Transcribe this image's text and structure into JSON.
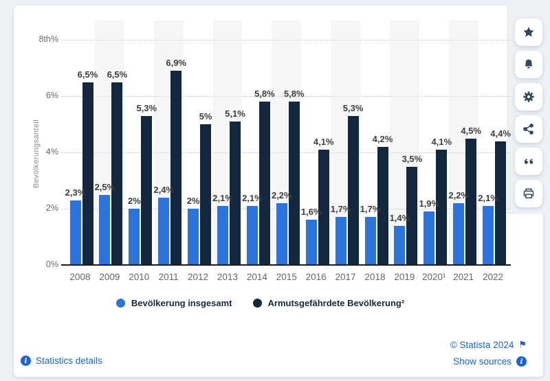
{
  "chart_data": {
    "type": "bar",
    "grouped": true,
    "title": "",
    "xlabel": "",
    "ylabel": "Bevölkerungsanteil",
    "ylim": [
      0,
      8
    ],
    "grid": "horizontal-dotted",
    "legend_position": "bottom",
    "categories": [
      "2008",
      "2009",
      "2010",
      "2011",
      "2012",
      "2013",
      "2014",
      "2015",
      "2016",
      "2017",
      "2018",
      "2019",
      "2020¹",
      "2021",
      "2022"
    ],
    "series": [
      {
        "name": "Bevölkerung insgesamt",
        "color": "#2b74dd",
        "values": [
          2.3,
          2.5,
          2.0,
          2.4,
          2.0,
          2.1,
          2.1,
          2.2,
          1.6,
          1.7,
          1.7,
          1.4,
          1.9,
          2.2,
          2.1
        ],
        "labels": [
          "2,3%",
          "2,5%",
          "2%",
          "2,4%",
          "2%",
          "2,1%",
          "2,1%",
          "2,2%",
          "1,6%",
          "1,7%",
          "1,7%",
          "1,4%",
          "1,9%",
          "2,2%",
          "2,1%"
        ]
      },
      {
        "name": "Armutsgefährdete Bevölkerung²",
        "color": "#13283e",
        "values": [
          6.5,
          6.5,
          5.3,
          6.9,
          5.0,
          5.1,
          5.8,
          5.8,
          4.1,
          5.3,
          4.2,
          3.5,
          4.1,
          4.5,
          4.4
        ],
        "labels": [
          "6,5%",
          "6,5%",
          "5,3%",
          "6,9%",
          "5%",
          "5,1%",
          "5,8%",
          "5,8%",
          "4,1%",
          "5,3%",
          "4,2%",
          "3,5%",
          "4,1%",
          "4,5%",
          "4,4%"
        ]
      }
    ],
    "yticks": [
      {
        "value": 0,
        "label": "0%"
      },
      {
        "value": 2,
        "label": "2%"
      },
      {
        "value": 4,
        "label": "4%"
      },
      {
        "value": 6,
        "label": "6%"
      },
      {
        "value": 8,
        "label": "8th%"
      }
    ]
  },
  "sidebar": {
    "buttons": [
      {
        "name": "favorite",
        "icon": "star-icon"
      },
      {
        "name": "notifications",
        "icon": "bell-icon"
      },
      {
        "name": "settings",
        "icon": "gear-icon"
      },
      {
        "name": "share",
        "icon": "share-icon"
      },
      {
        "name": "cite",
        "icon": "quote-icon"
      },
      {
        "name": "print",
        "icon": "printer-icon"
      }
    ]
  },
  "footer": {
    "statistics_details": "Statistics details",
    "copyright": "© Statista 2024",
    "show_sources": "Show sources",
    "flag_icon": "⚑"
  },
  "colors": {
    "series_total": "#2b74dd",
    "series_at_risk": "#13283e",
    "link_blue": "#1a63d9",
    "icon_navy": "#33475c",
    "band_gray": "#f6f6f7",
    "page_background": "#edf1f6",
    "grid_dotted": "#c9c9c9",
    "axis_text": "#666666",
    "bar_label_text": "#3e3e3e"
  }
}
